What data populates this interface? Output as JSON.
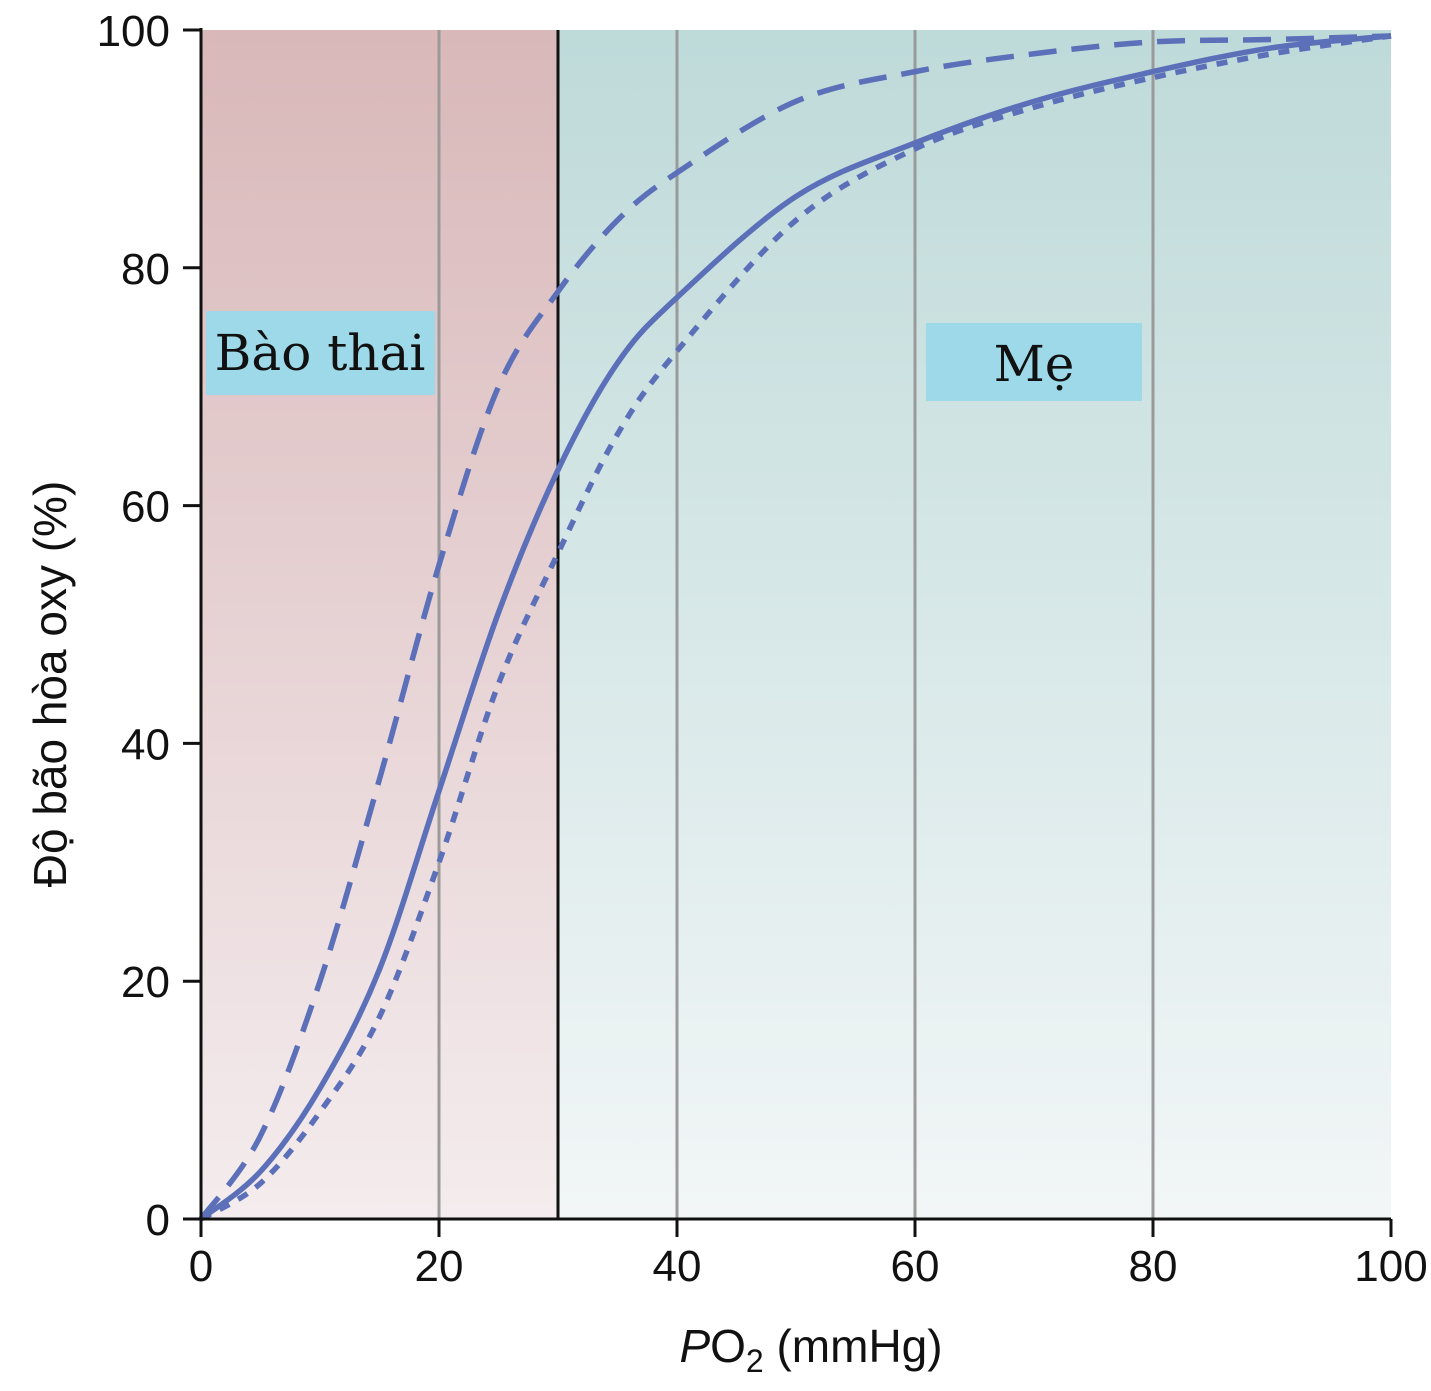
{
  "chart_data": {
    "type": "line",
    "title": "",
    "xlabel": {
      "italic": "P",
      "main": "O",
      "subscript": "2",
      "unit": " (mmHg)"
    },
    "ylabel": "Độ bão hòa oxy (%)",
    "xlim": [
      0,
      100
    ],
    "ylim": [
      0,
      100
    ],
    "xticks": [
      0,
      20,
      40,
      60,
      80,
      100
    ],
    "yticks": [
      0,
      20,
      40,
      60,
      80,
      100
    ],
    "x_gridlines": [
      20,
      40,
      60,
      80
    ],
    "grid": "vertical",
    "boundary_x": 30,
    "regions": [
      {
        "label": "Bào thai",
        "x_range": [
          0,
          30
        ],
        "color_top": "#d9b8b9",
        "color_bottom": "#f4ecee"
      },
      {
        "label": "Mẹ",
        "x_range": [
          30,
          100
        ],
        "color_top": "#bedad9",
        "color_bottom": "#f2f6f7"
      }
    ],
    "label_box_color": "#9dd9e8",
    "line_color": "#5b70b8",
    "series": [
      {
        "style": "dashed",
        "x": [
          0,
          5,
          10,
          15,
          20,
          25,
          30,
          35,
          40,
          50,
          60,
          70,
          80,
          90,
          100
        ],
        "values": [
          0,
          7,
          20,
          37,
          55,
          70,
          78,
          84,
          88,
          94,
          96.5,
          98,
          99,
          99.2,
          99.5
        ]
      },
      {
        "style": "solid",
        "x": [
          0,
          5,
          10,
          15,
          20,
          25,
          30,
          35,
          40,
          50,
          60,
          70,
          80,
          90,
          100
        ],
        "values": [
          0,
          4,
          11,
          21,
          36,
          51,
          63,
          72,
          77.5,
          86,
          90.5,
          94,
          96.5,
          98.5,
          99.5
        ]
      },
      {
        "style": "dotted",
        "x": [
          0,
          5,
          10,
          15,
          20,
          25,
          30,
          35,
          40,
          50,
          60,
          70,
          80,
          90,
          100
        ],
        "values": [
          0,
          3,
          9,
          17,
          30,
          45,
          56,
          66,
          73,
          84,
          90,
          93.5,
          96,
          98,
          99.5
        ]
      }
    ]
  }
}
